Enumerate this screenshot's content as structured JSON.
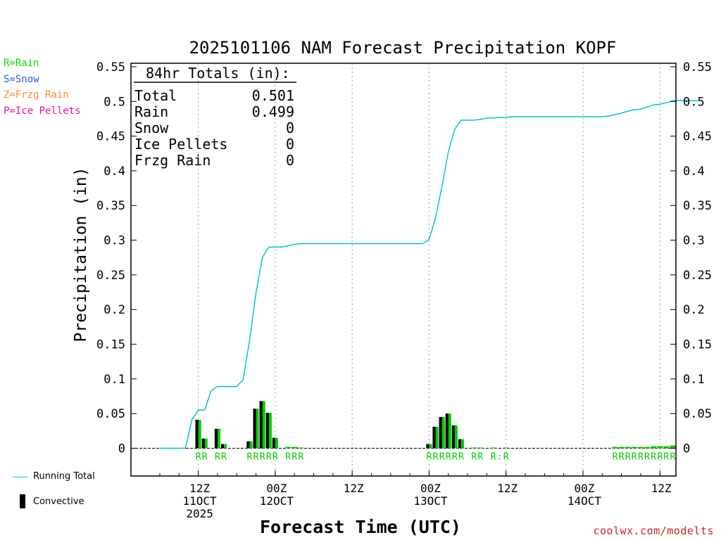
{
  "chart_data": {
    "type": "bar+line",
    "title": "2025101106 NAM Forecast Precipitation KOPF",
    "xlabel": "Forecast Time (UTC)",
    "ylabel": "Precipitation (in)",
    "ylim": [
      -0.04,
      0.555
    ],
    "yticks": [
      "0.55",
      "0.5",
      "0.45",
      "0.4",
      "0.35",
      "0.3",
      "0.25",
      "0.2",
      "0.15",
      "0.1",
      "0.05",
      "0"
    ],
    "ytick_values": [
      0.55,
      0.5,
      0.45,
      0.4,
      0.35,
      0.3,
      0.25,
      0.2,
      0.15,
      0.1,
      0.05,
      0
    ],
    "xlim_hours": [
      -4.5,
      80.5
    ],
    "x_unit": "forecast hours from 2025101106",
    "xticks": [
      {
        "hour": 6,
        "label1": "12Z",
        "label2": "11OCT",
        "label3": "2025"
      },
      {
        "hour": 18,
        "label1": "00Z",
        "label2": "12OCT",
        "label3": ""
      },
      {
        "hour": 30,
        "label1": "12Z",
        "label2": "",
        "label3": ""
      },
      {
        "hour": 42,
        "label1": "00Z",
        "label2": "13OCT",
        "label3": ""
      },
      {
        "hour": 54,
        "label1": "12Z",
        "label2": "",
        "label3": ""
      },
      {
        "hour": 66,
        "label1": "00Z",
        "label2": "14OCT",
        "label3": ""
      },
      {
        "hour": 78,
        "label1": "12Z",
        "label2": "",
        "label3": ""
      }
    ],
    "totals_box": {
      "header": "84hr Totals (in):",
      "rows": [
        {
          "label": "Total",
          "value": "0.501"
        },
        {
          "label": "Rain",
          "value": "0.499"
        },
        {
          "label": "Snow",
          "value": "0"
        },
        {
          "label": "Ice Pellets",
          "value": "0"
        },
        {
          "label": "Frzg Rain",
          "value": "0"
        }
      ]
    },
    "series": [
      {
        "name": "Precipitation (rain)",
        "kind": "bar",
        "color": "#00cc00",
        "points": [
          {
            "hour": 6,
            "value": 0.041
          },
          {
            "hour": 7,
            "value": 0.014
          },
          {
            "hour": 9,
            "value": 0.028
          },
          {
            "hour": 10,
            "value": 0.006
          },
          {
            "hour": 14,
            "value": 0.01
          },
          {
            "hour": 15,
            "value": 0.057
          },
          {
            "hour": 16,
            "value": 0.068
          },
          {
            "hour": 17,
            "value": 0.051
          },
          {
            "hour": 18,
            "value": 0.015
          },
          {
            "hour": 20,
            "value": 0.002
          },
          {
            "hour": 21,
            "value": 0.002
          },
          {
            "hour": 22,
            "value": 0.001
          },
          {
            "hour": 42,
            "value": 0.006
          },
          {
            "hour": 43,
            "value": 0.031
          },
          {
            "hour": 44,
            "value": 0.045
          },
          {
            "hour": 45,
            "value": 0.05
          },
          {
            "hour": 46,
            "value": 0.033
          },
          {
            "hour": 47,
            "value": 0.013
          },
          {
            "hour": 49,
            "value": 0.001
          },
          {
            "hour": 50,
            "value": 0.001
          },
          {
            "hour": 52,
            "value": 0.001
          },
          {
            "hour": 54,
            "value": 0.001
          },
          {
            "hour": 71,
            "value": 0.002
          },
          {
            "hour": 72,
            "value": 0.002
          },
          {
            "hour": 73,
            "value": 0.002
          },
          {
            "hour": 74,
            "value": 0.002
          },
          {
            "hour": 75,
            "value": 0.002
          },
          {
            "hour": 76,
            "value": 0.002
          },
          {
            "hour": 77,
            "value": 0.003
          },
          {
            "hour": 78,
            "value": 0.003
          },
          {
            "hour": 79,
            "value": 0.003
          },
          {
            "hour": 80,
            "value": 0.004
          }
        ]
      },
      {
        "name": "Convective",
        "kind": "bar",
        "color": "#000000",
        "points": [
          {
            "hour": 6,
            "value": 0.041
          },
          {
            "hour": 7,
            "value": 0.014
          },
          {
            "hour": 9,
            "value": 0.028
          },
          {
            "hour": 10,
            "value": 0.006
          },
          {
            "hour": 14,
            "value": 0.01
          },
          {
            "hour": 15,
            "value": 0.057
          },
          {
            "hour": 16,
            "value": 0.068
          },
          {
            "hour": 17,
            "value": 0.051
          },
          {
            "hour": 18,
            "value": 0.015
          },
          {
            "hour": 42,
            "value": 0.006
          },
          {
            "hour": 43,
            "value": 0.031
          },
          {
            "hour": 44,
            "value": 0.045
          },
          {
            "hour": 45,
            "value": 0.05
          },
          {
            "hour": 46,
            "value": 0.033
          },
          {
            "hour": 47,
            "value": 0.013
          }
        ]
      },
      {
        "name": "Running Total",
        "kind": "line",
        "color": "#00c8c8",
        "points": [
          {
            "hour": 0,
            "value": 0
          },
          {
            "hour": 3,
            "value": 0
          },
          {
            "hour": 4,
            "value": 0
          },
          {
            "hour": 5,
            "value": 0.041
          },
          {
            "hour": 6,
            "value": 0.055
          },
          {
            "hour": 7,
            "value": 0.055
          },
          {
            "hour": 8,
            "value": 0.083
          },
          {
            "hour": 9,
            "value": 0.089
          },
          {
            "hour": 10,
            "value": 0.089
          },
          {
            "hour": 11,
            "value": 0.089
          },
          {
            "hour": 12,
            "value": 0.089
          },
          {
            "hour": 13,
            "value": 0.099
          },
          {
            "hour": 14,
            "value": 0.156
          },
          {
            "hour": 15,
            "value": 0.224
          },
          {
            "hour": 16,
            "value": 0.275
          },
          {
            "hour": 17,
            "value": 0.29
          },
          {
            "hour": 18,
            "value": 0.29
          },
          {
            "hour": 19,
            "value": 0.29
          },
          {
            "hour": 20,
            "value": 0.292
          },
          {
            "hour": 21,
            "value": 0.294
          },
          {
            "hour": 22,
            "value": 0.295
          },
          {
            "hour": 30,
            "value": 0.295
          },
          {
            "hour": 41,
            "value": 0.295
          },
          {
            "hour": 42,
            "value": 0.301
          },
          {
            "hour": 43,
            "value": 0.332
          },
          {
            "hour": 44,
            "value": 0.377
          },
          {
            "hour": 45,
            "value": 0.427
          },
          {
            "hour": 46,
            "value": 0.46
          },
          {
            "hour": 47,
            "value": 0.473
          },
          {
            "hour": 48,
            "value": 0.473
          },
          {
            "hour": 49,
            "value": 0.473
          },
          {
            "hour": 50,
            "value": 0.474
          },
          {
            "hour": 51,
            "value": 0.476
          },
          {
            "hour": 52,
            "value": 0.476
          },
          {
            "hour": 53,
            "value": 0.477
          },
          {
            "hour": 54,
            "value": 0.477
          },
          {
            "hour": 55,
            "value": 0.478
          },
          {
            "hour": 66,
            "value": 0.478
          },
          {
            "hour": 69,
            "value": 0.478
          },
          {
            "hour": 70,
            "value": 0.479
          },
          {
            "hour": 71,
            "value": 0.481
          },
          {
            "hour": 72,
            "value": 0.483
          },
          {
            "hour": 73,
            "value": 0.486
          },
          {
            "hour": 74,
            "value": 0.488
          },
          {
            "hour": 75,
            "value": 0.489
          },
          {
            "hour": 76,
            "value": 0.492
          },
          {
            "hour": 77,
            "value": 0.495
          },
          {
            "hour": 78,
            "value": 0.496
          },
          {
            "hour": 79,
            "value": 0.498
          },
          {
            "hour": 80,
            "value": 0.501
          },
          {
            "hour": 84,
            "value": 0.501
          }
        ]
      }
    ],
    "ptype_labels": [
      {
        "hour": 6,
        "text": "R"
      },
      {
        "hour": 7,
        "text": "R"
      },
      {
        "hour": 9,
        "text": "R"
      },
      {
        "hour": 10,
        "text": "R"
      },
      {
        "hour": 14,
        "text": "R"
      },
      {
        "hour": 15,
        "text": "R"
      },
      {
        "hour": 16,
        "text": "R"
      },
      {
        "hour": 17,
        "text": "R"
      },
      {
        "hour": 18,
        "text": "R"
      },
      {
        "hour": 20,
        "text": "R"
      },
      {
        "hour": 21,
        "text": "R"
      },
      {
        "hour": 22,
        "text": "R"
      },
      {
        "hour": 42,
        "text": "R"
      },
      {
        "hour": 43,
        "text": "R"
      },
      {
        "hour": 44,
        "text": "R"
      },
      {
        "hour": 45,
        "text": "R"
      },
      {
        "hour": 46,
        "text": "R"
      },
      {
        "hour": 47,
        "text": "R"
      },
      {
        "hour": 49,
        "text": "R"
      },
      {
        "hour": 50,
        "text": "R"
      },
      {
        "hour": 52,
        "text": "R"
      },
      {
        "hour": 53,
        "text": ":"
      },
      {
        "hour": 54,
        "text": "R"
      },
      {
        "hour": 71,
        "text": "R"
      },
      {
        "hour": 72,
        "text": "R"
      },
      {
        "hour": 73,
        "text": "R"
      },
      {
        "hour": 74,
        "text": "R"
      },
      {
        "hour": 75,
        "text": "R"
      },
      {
        "hour": 76,
        "text": "R"
      },
      {
        "hour": 77,
        "text": "R"
      },
      {
        "hour": 78,
        "text": "R"
      },
      {
        "hour": 79,
        "text": "R"
      },
      {
        "hour": 80,
        "text": "R"
      }
    ]
  },
  "legend": {
    "types": [
      {
        "text": "R=Rain",
        "color": "#00dd00"
      },
      {
        "text": "S=Snow",
        "color": "#3355ee"
      },
      {
        "text": "Z=Frzg Rain",
        "color": "#ff8833"
      },
      {
        "text": "P=Ice Pellets",
        "color": "#ee1199"
      }
    ],
    "running_total_label": "Running Total",
    "convective_label": "Convective"
  },
  "colors": {
    "rain_bar": "#00cc00",
    "convective_bar": "#000000",
    "running_total_line": "#00c8c8",
    "watermark": "#cc2222"
  },
  "watermark": "coolwx.com/modelts"
}
